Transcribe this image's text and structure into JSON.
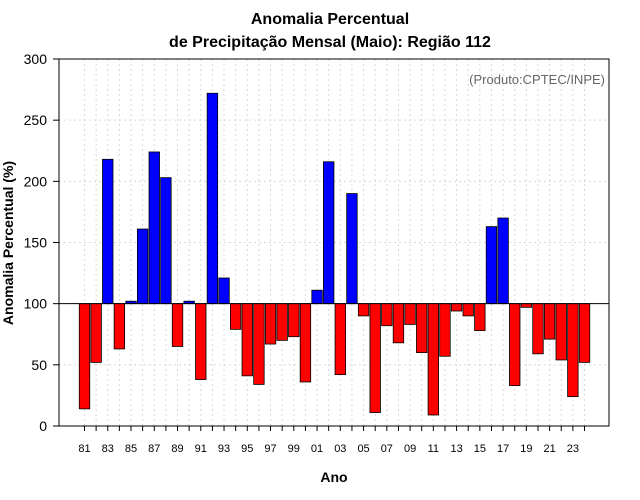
{
  "chart_data": {
    "type": "bar",
    "title_line1": "Anomalia Percentual",
    "title_line2": "de Precipitação Mensal (Maio): Região 112",
    "xlabel": "Ano",
    "ylabel": "Anomalia Percentual (%)",
    "credit": "(Produto:CPTEC/INPE)",
    "ylim": [
      0,
      300
    ],
    "yticks": [
      0,
      50,
      100,
      150,
      200,
      250,
      300
    ],
    "baseline": 100,
    "colors": {
      "above": "#0000ff",
      "below": "#ff0000",
      "edge": "#000000"
    },
    "categories": [
      "81",
      "82",
      "83",
      "84",
      "85",
      "86",
      "87",
      "88",
      "89",
      "90",
      "91",
      "92",
      "93",
      "94",
      "95",
      "96",
      "97",
      "98",
      "99",
      "00",
      "01",
      "02",
      "03",
      "04",
      "05",
      "06",
      "07",
      "08",
      "09",
      "10",
      "11",
      "12",
      "13",
      "14",
      "15",
      "16",
      "17",
      "18",
      "19",
      "20",
      "21",
      "22",
      "23",
      "24"
    ],
    "tick_labels": [
      "81",
      "83",
      "85",
      "87",
      "89",
      "91",
      "93",
      "95",
      "97",
      "99",
      "01",
      "03",
      "05",
      "07",
      "09",
      "11",
      "13",
      "15",
      "17",
      "19",
      "21",
      "23"
    ],
    "values": [
      14,
      52,
      218,
      63,
      102,
      161,
      224,
      203,
      65,
      102,
      38,
      272,
      121,
      79,
      41,
      34,
      67,
      70,
      73,
      36,
      111,
      216,
      42,
      190,
      90,
      11,
      82,
      68,
      83,
      60,
      9,
      57,
      94,
      90,
      78,
      163,
      170,
      33,
      97,
      59,
      71,
      54,
      24,
      52
    ]
  }
}
